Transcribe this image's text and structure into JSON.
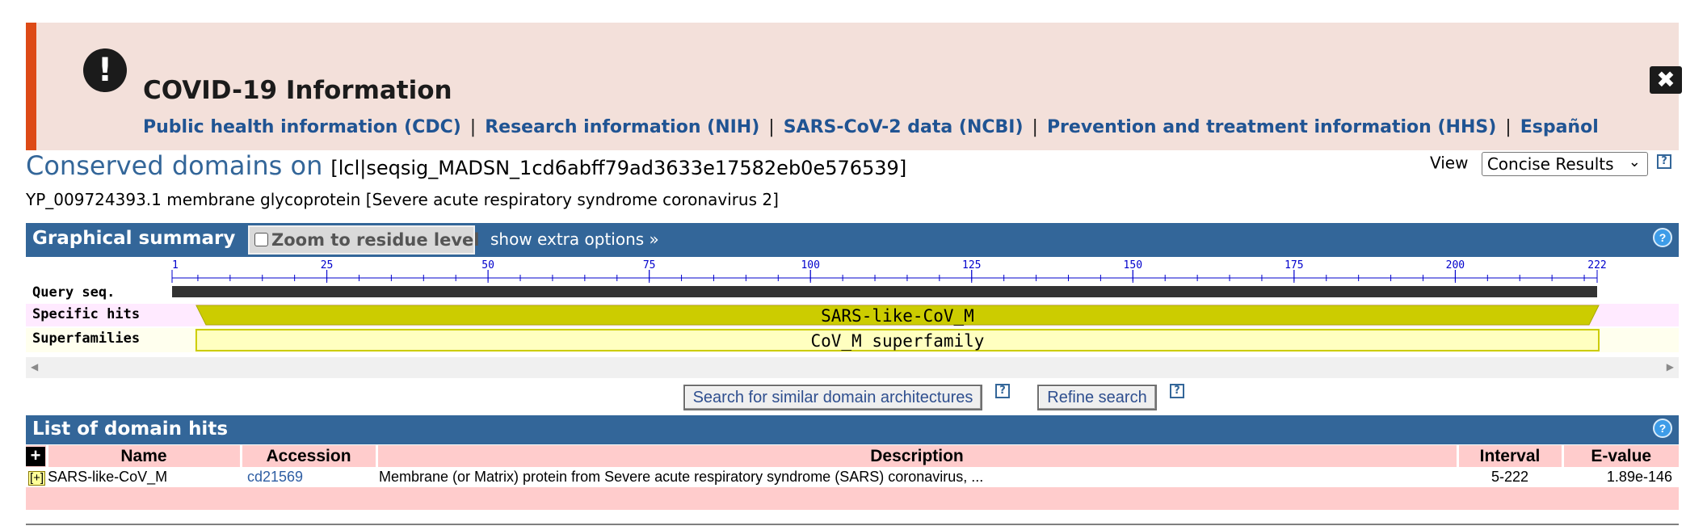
{
  "covid_banner": {
    "title": "COVID-19 Information",
    "alert_icon": "!",
    "close_icon": "✖",
    "links": [
      "Public health information (CDC)",
      "Research information (NIH)",
      "SARS-CoV-2 data (NCBI)",
      "Prevention and treatment information (HHS)",
      "Español"
    ],
    "separator": "|",
    "accent_color": "#dd4a16",
    "background_color": "#f3e0da"
  },
  "heading": {
    "title": "Conserved domains on",
    "query_id": "[lcl|seqsig_MADSN_1cd6abff79ad3633e17582eb0e576539]",
    "description": "YP_009724393.1 membrane glycoprotein [Severe acute respiratory syndrome coronavirus 2]"
  },
  "view": {
    "label": "View",
    "selected": "Concise Results",
    "help": "?"
  },
  "graphical_summary": {
    "title": "Graphical summary",
    "zoom_label": "Zoom to residue level",
    "extra_options": "show extra options »",
    "help": "?",
    "ruler_ticks": [
      "1",
      "25",
      "50",
      "75",
      "100",
      "125",
      "150",
      "175",
      "200",
      "222"
    ],
    "query_length": 222,
    "row_labels": {
      "query": "Query seq.",
      "specific": "Specific hits",
      "superfamilies": "Superfamilies"
    },
    "specific_hit": {
      "label": "SARS-like-CoV_M",
      "from": 5,
      "to": 222,
      "color": "#cccc00"
    },
    "superfamily_hit": {
      "label": "CoV_M superfamily",
      "from": 5,
      "to": 222,
      "color": "#ffffc0"
    },
    "scroll_left": "◀",
    "scroll_right": "▶"
  },
  "actions": {
    "search_similar": "Search for similar domain architectures",
    "refine": "Refine search",
    "help": "?"
  },
  "domain_hits": {
    "title": "List of domain hits",
    "help": "?",
    "expand_all": "+",
    "columns": [
      "Name",
      "Accession",
      "Description",
      "Interval",
      "E-value"
    ],
    "rows": [
      {
        "expand": "[+]",
        "name": "SARS-like-CoV_M",
        "accession": "cd21569",
        "description": "Membrane (or Matrix) protein from Severe acute respiratory syndrome (SARS) coronavirus, ...",
        "interval": "5-222",
        "evalue": "1.89e-146"
      }
    ]
  }
}
